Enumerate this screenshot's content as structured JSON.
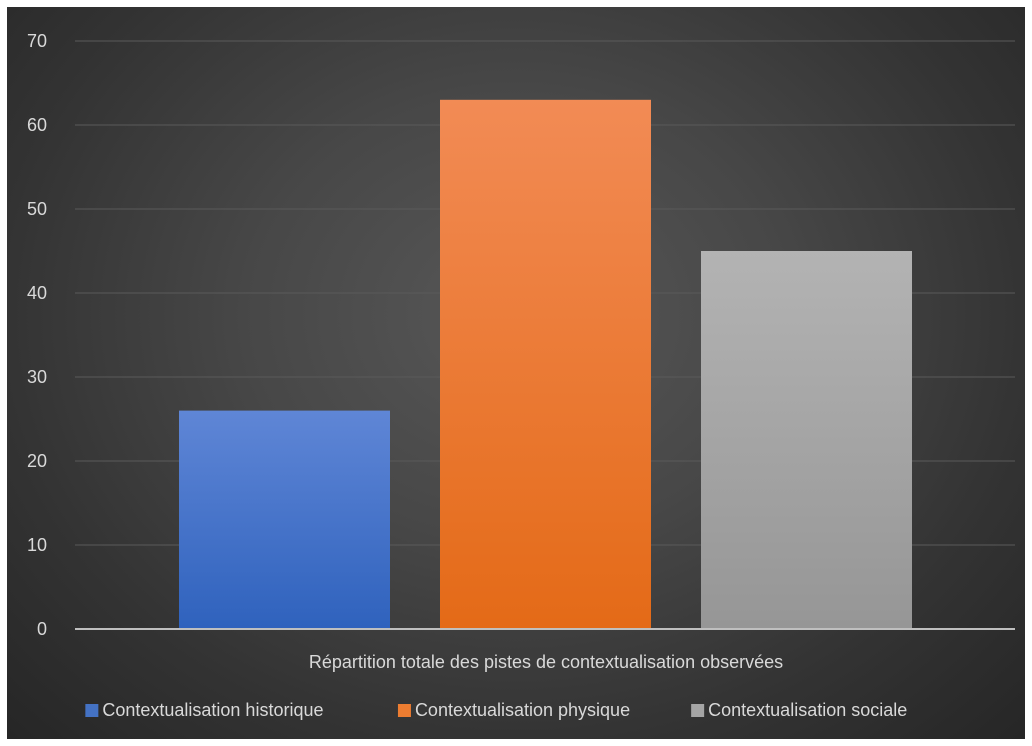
{
  "chart_data": {
    "type": "bar",
    "title": "",
    "xlabel": "",
    "ylabel": "",
    "categories": [
      "Répartition totale des pistes de contextualisation observées"
    ],
    "series": [
      {
        "name": "Contextualisation historique",
        "values": [
          26
        ],
        "color": "#4472c4"
      },
      {
        "name": "Contextualisation physique",
        "values": [
          63
        ],
        "color": "#ed7d31"
      },
      {
        "name": "Contextualisation sociale",
        "values": [
          45
        ],
        "color": "#a5a5a5"
      }
    ],
    "ylim": [
      0,
      70
    ],
    "yticks": [
      "0",
      "10",
      "20",
      "30",
      "40",
      "50",
      "60",
      "70"
    ],
    "grid": true,
    "legend": "bottom",
    "background": "#3a3a3a"
  }
}
